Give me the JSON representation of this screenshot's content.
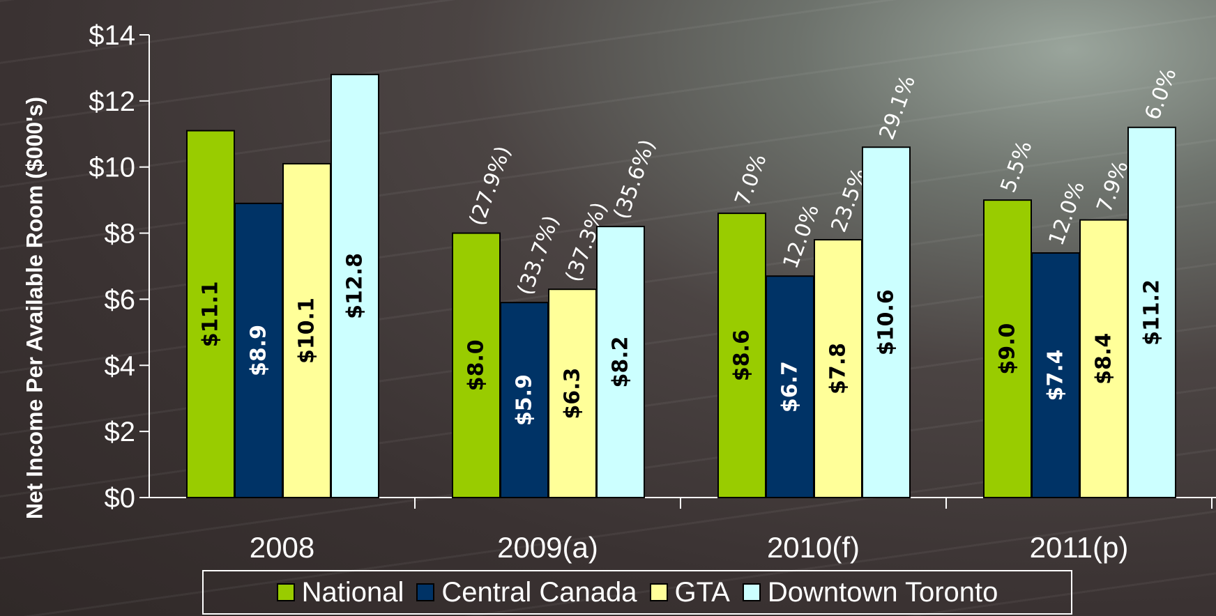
{
  "chart_data": {
    "type": "bar",
    "title": "",
    "ylabel": "Net Income Per Available Room ($000's)",
    "xlabel": "",
    "ylim": [
      0,
      14
    ],
    "yticks": [
      0,
      2,
      4,
      6,
      8,
      10,
      12,
      14
    ],
    "ytick_labels": [
      "$0",
      "$2",
      "$4",
      "$6",
      "$8",
      "$10",
      "$12",
      "$14"
    ],
    "categories": [
      "2008",
      "2009(a)",
      "2010(f)",
      "2011(p)"
    ],
    "legend_position": "bottom",
    "grid": false,
    "series": [
      {
        "name": "National",
        "color": "#99cc00",
        "label_color": "#000000",
        "values": [
          11.1,
          8.0,
          8.6,
          9.0
        ],
        "value_labels": [
          "$11.1",
          "$8.0",
          "$8.6",
          "$9.0"
        ],
        "change_labels": [
          "",
          "(27.9%)",
          "7.0%",
          "5.5%"
        ]
      },
      {
        "name": "Central Canada",
        "color": "#003366",
        "label_color": "#ffffff",
        "values": [
          8.9,
          5.9,
          6.7,
          7.4
        ],
        "value_labels": [
          "$8.9",
          "$5.9",
          "$6.7",
          "$7.4"
        ],
        "change_labels": [
          "",
          "(33.7%)",
          "12.0%",
          "12.0%"
        ]
      },
      {
        "name": "GTA",
        "color": "#ffff99",
        "label_color": "#000000",
        "values": [
          10.1,
          6.3,
          7.8,
          8.4
        ],
        "value_labels": [
          "$10.1",
          "$6.3",
          "$7.8",
          "$8.4"
        ],
        "change_labels": [
          "",
          "(37.3%)",
          "23.5%",
          "7.9%"
        ]
      },
      {
        "name": "Downtown Toronto",
        "color": "#ccffff",
        "label_color": "#000000",
        "values": [
          12.8,
          8.2,
          10.6,
          11.2
        ],
        "value_labels": [
          "$12.8",
          "$8.2",
          "$10.6",
          "$11.2"
        ],
        "change_labels": [
          "",
          "(35.6%)",
          "29.1%",
          "6.0%"
        ]
      }
    ]
  }
}
